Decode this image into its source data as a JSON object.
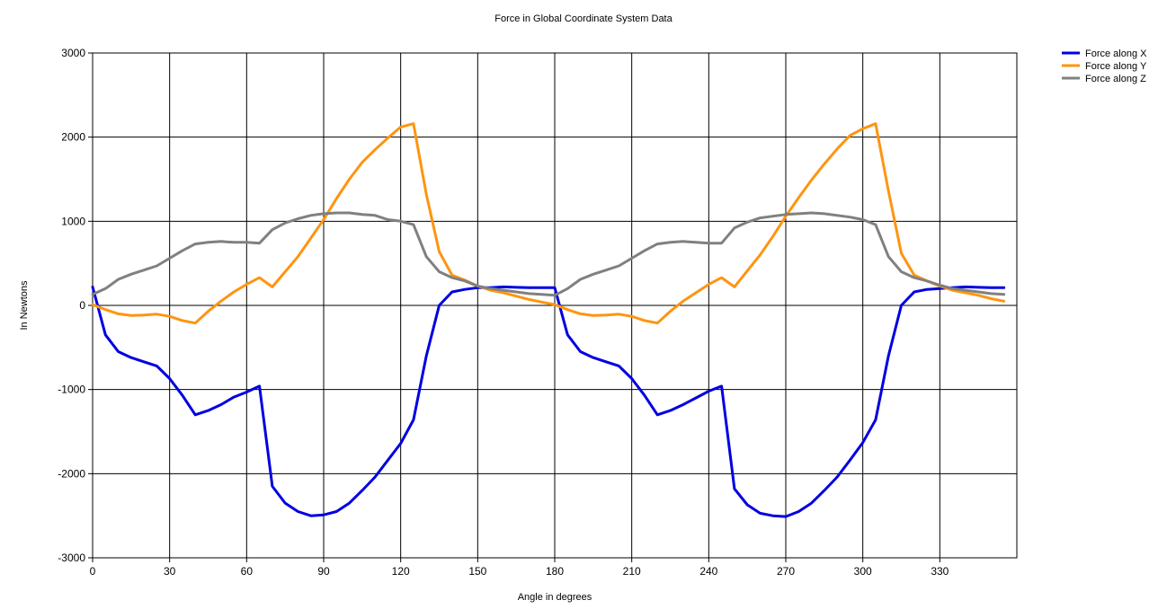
{
  "chart_data": {
    "type": "line",
    "title": "Force in Global Coordinate System Data",
    "xlabel": "Angle in degrees",
    "ylabel": "In Newtons",
    "xlim": [
      0,
      360
    ],
    "ylim": [
      -3000,
      3000
    ],
    "x_ticks": [
      0,
      30,
      60,
      90,
      120,
      150,
      180,
      210,
      240,
      270,
      300,
      330
    ],
    "y_ticks": [
      3000,
      2000,
      1000,
      0,
      -1000,
      -2000,
      -3000
    ],
    "grid": true,
    "legend_position": "top-right",
    "x": [
      0,
      5,
      10,
      15,
      20,
      25,
      30,
      35,
      40,
      45,
      50,
      55,
      60,
      65,
      70,
      75,
      80,
      85,
      90,
      95,
      100,
      105,
      110,
      115,
      120,
      125,
      130,
      135,
      140,
      145,
      150,
      155,
      160,
      165,
      170,
      175,
      180,
      185,
      190,
      195,
      200,
      205,
      210,
      215,
      220,
      225,
      230,
      235,
      240,
      245,
      250,
      255,
      260,
      265,
      270,
      275,
      280,
      285,
      290,
      295,
      300,
      305,
      310,
      315,
      320,
      325,
      330,
      335,
      340,
      345,
      350,
      355
    ],
    "series": [
      {
        "name": "Force along X",
        "color": "#0000e0",
        "values": [
          220,
          -350,
          -550,
          -620,
          -670,
          -720,
          -870,
          -1070,
          -1300,
          -1250,
          -1180,
          -1090,
          -1030,
          -960,
          -2150,
          -2350,
          -2450,
          -2500,
          -2490,
          -2450,
          -2350,
          -2200,
          -2040,
          -1840,
          -1640,
          -1360,
          -600,
          0,
          160,
          190,
          210,
          210,
          220,
          215,
          210,
          210,
          210,
          -350,
          -550,
          -620,
          -670,
          -720,
          -870,
          -1070,
          -1300,
          -1250,
          -1180,
          -1100,
          -1020,
          -960,
          -2180,
          -2370,
          -2470,
          -2500,
          -2510,
          -2450,
          -2350,
          -2200,
          -2040,
          -1840,
          -1630,
          -1360,
          -600,
          0,
          160,
          190,
          200,
          210,
          220,
          215,
          210,
          210
        ]
      },
      {
        "name": "Force along Y",
        "color": "#ff9410",
        "values": [
          10,
          -50,
          -100,
          -120,
          -115,
          -105,
          -130,
          -180,
          -210,
          -70,
          50,
          160,
          250,
          330,
          220,
          400,
          580,
          800,
          1020,
          1270,
          1500,
          1700,
          1850,
          1990,
          2120,
          2160,
          1320,
          640,
          360,
          300,
          230,
          180,
          150,
          110,
          70,
          40,
          10,
          -50,
          -100,
          -120,
          -115,
          -105,
          -130,
          -180,
          -210,
          -70,
          50,
          150,
          250,
          330,
          220,
          410,
          600,
          820,
          1060,
          1280,
          1490,
          1680,
          1860,
          2020,
          2100,
          2160,
          1360,
          620,
          360,
          290,
          230,
          180,
          150,
          120,
          80,
          50
        ]
      },
      {
        "name": "Force along Z",
        "color": "#808080",
        "values": [
          130,
          200,
          310,
          370,
          420,
          470,
          560,
          650,
          730,
          750,
          760,
          750,
          750,
          740,
          900,
          980,
          1030,
          1070,
          1090,
          1100,
          1100,
          1080,
          1070,
          1020,
          1000,
          960,
          580,
          400,
          330,
          290,
          230,
          200,
          180,
          160,
          140,
          130,
          120,
          200,
          310,
          370,
          420,
          470,
          560,
          650,
          730,
          750,
          760,
          750,
          740,
          740,
          920,
          990,
          1040,
          1060,
          1080,
          1090,
          1100,
          1090,
          1070,
          1050,
          1020,
          960,
          580,
          400,
          330,
          290,
          240,
          200,
          180,
          160,
          140,
          130
        ]
      }
    ]
  }
}
